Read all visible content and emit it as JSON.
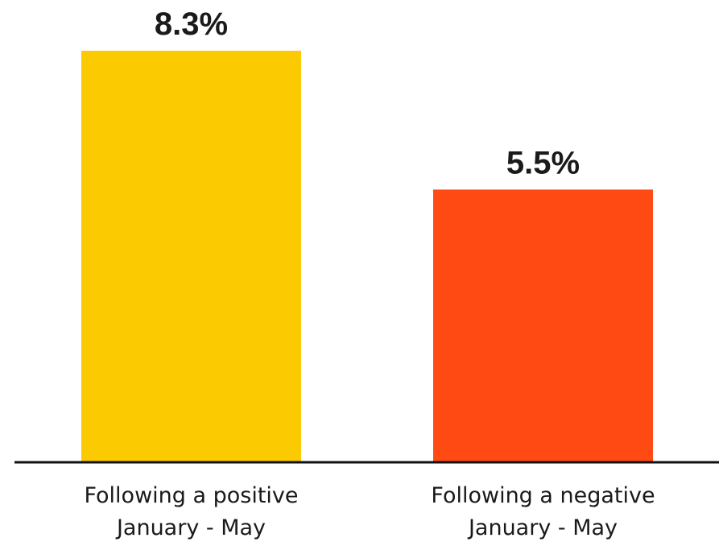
{
  "chart_data": {
    "type": "bar",
    "categories": [
      [
        "Following a positive",
        "January - May"
      ],
      [
        "Following a negative",
        "January - May"
      ]
    ],
    "values": [
      8.3,
      5.5
    ],
    "value_labels": [
      "8.3%",
      "5.5%"
    ],
    "colors": [
      "#FCCA00",
      "#FF4A14"
    ],
    "axis_color": "#111111",
    "ylim": [
      0,
      8.3
    ],
    "grid": false,
    "title": "",
    "xlabel": "",
    "ylabel": ""
  }
}
